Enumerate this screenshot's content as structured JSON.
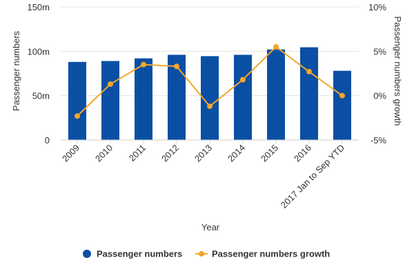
{
  "chart_data": {
    "type": "bar",
    "categories": [
      "2009",
      "2010",
      "2011",
      "2012",
      "2013",
      "2014",
      "2015",
      "2016",
      "2017 Jan to Sep YTD"
    ],
    "series": [
      {
        "name": "Passenger numbers",
        "type": "bar",
        "axis": "left",
        "color": "#0a4fa3",
        "values": [
          88,
          89,
          92,
          96,
          94.5,
          96,
          102,
          104.5,
          78
        ]
      },
      {
        "name": "Passenger numbers growth",
        "type": "line",
        "axis": "right",
        "color": "#f5a52b",
        "values": [
          -2.3,
          1.3,
          3.5,
          3.3,
          -1.2,
          1.8,
          5.5,
          2.7,
          0.0
        ]
      }
    ],
    "xlabel": "Year",
    "ylabel": "Passenger numbers",
    "y2label": "Passenger numbers growth",
    "ylim": [
      0,
      150
    ],
    "y2lim": [
      -5,
      10
    ],
    "yticks": [
      {
        "value": 0,
        "label": "0"
      },
      {
        "value": 50,
        "label": "50m"
      },
      {
        "value": 100,
        "label": "100m"
      },
      {
        "value": 150,
        "label": "150m"
      }
    ],
    "y2ticks": [
      {
        "value": -5,
        "label": "-5%"
      },
      {
        "value": 0,
        "label": "0%"
      },
      {
        "value": 5,
        "label": "5%"
      },
      {
        "value": 10,
        "label": "10%"
      }
    ],
    "grid": true,
    "legend_position": "bottom"
  }
}
